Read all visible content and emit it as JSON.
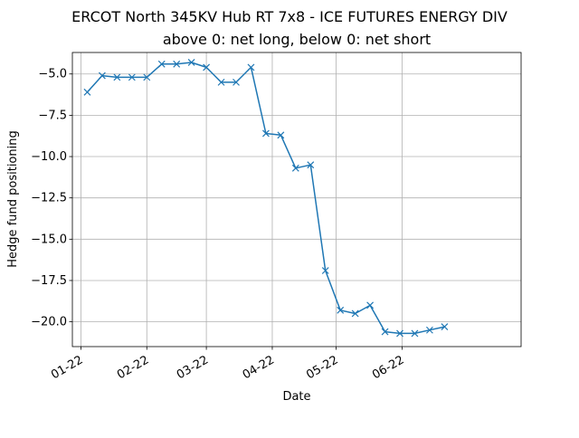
{
  "chart_data": {
    "type": "line",
    "title": "ERCOT North 345KV Hub RT 7x8 - ICE FUTURES ENERGY DIV",
    "subtitle": "above 0: net long, below 0: net short",
    "xlabel": "Date",
    "ylabel": "Hedge fund positioning",
    "x_ticks": [
      {
        "date": "2022-01-01",
        "label": "01-22"
      },
      {
        "date": "2022-02-01",
        "label": "02-22"
      },
      {
        "date": "2022-03-01",
        "label": "03-22"
      },
      {
        "date": "2022-04-01",
        "label": "04-22"
      },
      {
        "date": "2022-05-01",
        "label": "05-22"
      },
      {
        "date": "2022-06-01",
        "label": "06-22"
      }
    ],
    "y_ticks": [
      {
        "value": -5.0,
        "label": "−5.0"
      },
      {
        "value": -7.5,
        "label": "−7.5"
      },
      {
        "value": -10.0,
        "label": "−10.0"
      },
      {
        "value": -12.5,
        "label": "−12.5"
      },
      {
        "value": -15.0,
        "label": "−15.0"
      },
      {
        "value": -17.5,
        "label": "−17.5"
      },
      {
        "value": -20.0,
        "label": "−20.0"
      }
    ],
    "xlim": [
      "2021-12-28",
      "2022-07-27"
    ],
    "ylim": [
      -21.5,
      -3.7
    ],
    "grid": true,
    "color": "#1f77b4",
    "marker": "x",
    "series": [
      {
        "x": [
          "2022-01-04",
          "2022-01-11",
          "2022-01-18",
          "2022-01-25",
          "2022-02-01",
          "2022-02-08",
          "2022-02-15",
          "2022-02-22",
          "2022-03-01",
          "2022-03-08",
          "2022-03-15",
          "2022-03-22",
          "2022-03-29",
          "2022-04-05",
          "2022-04-12",
          "2022-04-19",
          "2022-04-26",
          "2022-05-03",
          "2022-05-10",
          "2022-05-17",
          "2022-05-24",
          "2022-05-31",
          "2022-06-07",
          "2022-06-14",
          "2022-06-21"
        ],
        "y": [
          -6.1,
          -5.1,
          -5.2,
          -5.2,
          -5.2,
          -4.4,
          -4.4,
          -4.3,
          -4.6,
          -5.5,
          -5.5,
          -4.6,
          -8.6,
          -8.7,
          -10.7,
          -10.5,
          -16.9,
          -19.3,
          -19.5,
          -19.0,
          -20.6,
          -20.7,
          -20.7,
          -20.5,
          -20.3
        ]
      }
    ]
  }
}
